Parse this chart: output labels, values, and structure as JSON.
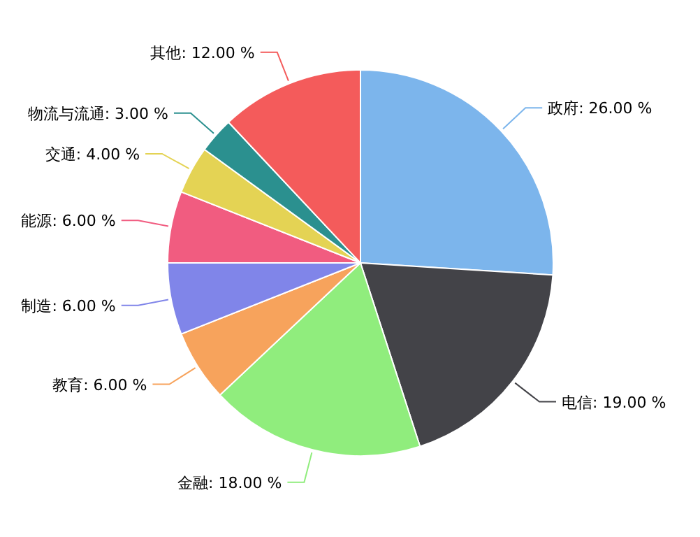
{
  "chart_data": {
    "type": "pie",
    "categories": [
      "政府",
      "电信",
      "金融",
      "教育",
      "制造",
      "能源",
      "交通",
      "物流与流通",
      "其他"
    ],
    "values": [
      26,
      19,
      18,
      6,
      6,
      6,
      4,
      3,
      12
    ],
    "value_labels": [
      "26.00 %",
      "19.00 %",
      "18.00 %",
      "6.00 %",
      "6.00 %",
      "6.00 %",
      "4.00 %",
      "3.00 %",
      "12.00 %"
    ],
    "colors": [
      "#7cb5ec",
      "#434348",
      "#90ed7d",
      "#f7a35c",
      "#8085e9",
      "#f15c80",
      "#e4d354",
      "#2b908f",
      "#f45b5b"
    ]
  }
}
